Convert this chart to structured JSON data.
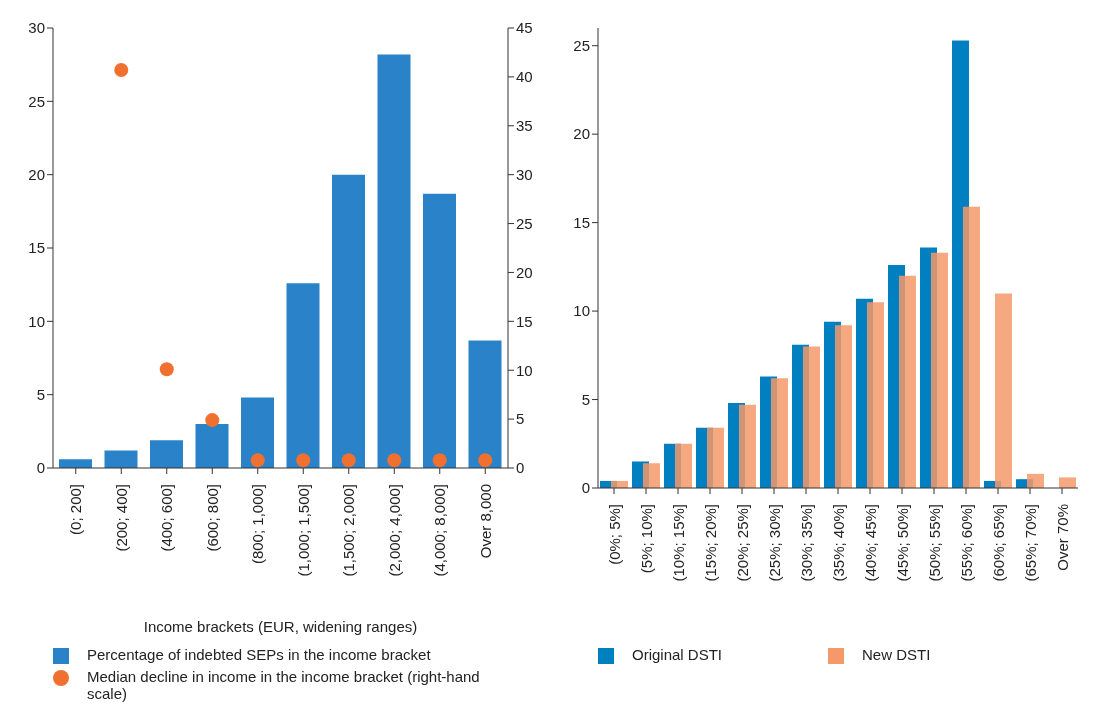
{
  "chart_data": [
    {
      "type": "bar",
      "xlabel": "Income brackets (EUR, widening ranges)",
      "categories": [
        "(0; 200]",
        "(200; 400]",
        "(400; 600]",
        "(600; 800]",
        "(800; 1,000]",
        "(1,000; 1,500]",
        "(1,500; 2,000]",
        "(2,000; 4,000]",
        "(4,000; 8,000]",
        "Over 8,000"
      ],
      "series": [
        {
          "name": "Percentage of indebted SEPs in the income bracket",
          "color": "#2a82c8",
          "values": [
            0.6,
            1.2,
            1.9,
            3.0,
            4.8,
            12.6,
            20.0,
            28.2,
            18.7,
            8.7
          ]
        },
        {
          "name": "Median decline in income in the income bracket (right-hand scale)",
          "type": "scatter",
          "axis": "y2",
          "color": "#f07030",
          "marker": "circle",
          "values": [
            null,
            40.7,
            10.1,
            4.9,
            0.8,
            0.8,
            0.8,
            0.8,
            0.8,
            0.8
          ]
        }
      ],
      "ylim": [
        0,
        30
      ],
      "yticks": [
        0,
        5,
        10,
        15,
        20,
        25,
        30
      ],
      "y2lim": [
        0,
        45
      ],
      "y2ticks": [
        0,
        5,
        10,
        15,
        20,
        25,
        30,
        35,
        40,
        45
      ],
      "legend": "bottom"
    },
    {
      "type": "bar",
      "categories": [
        "(0%; 5%]",
        "(5%; 10%]",
        "(10%; 15%]",
        "(15%; 20%]",
        "(20%; 25%]",
        "(25%; 30%]",
        "(30%; 35%]",
        "(35%; 40%]",
        "(40%; 45%]",
        "(45%; 50%]",
        "(50%; 55%]",
        "(55%; 60%]",
        "(60%; 65%]",
        "(65%; 70%]",
        "Over 70%"
      ],
      "series": [
        {
          "name": "Original DSTI",
          "color": "#0080c0",
          "values": [
            0.4,
            1.5,
            2.5,
            3.4,
            4.8,
            6.3,
            8.1,
            9.4,
            10.7,
            12.6,
            13.6,
            25.3,
            0.4,
            0.5,
            0
          ]
        },
        {
          "name": "New DSTI",
          "color": "#f5996a",
          "values": [
            0.4,
            1.4,
            2.5,
            3.4,
            4.7,
            6.2,
            8.0,
            9.2,
            10.5,
            12.0,
            13.3,
            15.9,
            11.0,
            0.8,
            0.6
          ]
        }
      ],
      "ylim": [
        0,
        26
      ],
      "yticks": [
        0,
        5,
        10,
        15,
        20,
        25
      ],
      "legend": "bottom"
    }
  ]
}
